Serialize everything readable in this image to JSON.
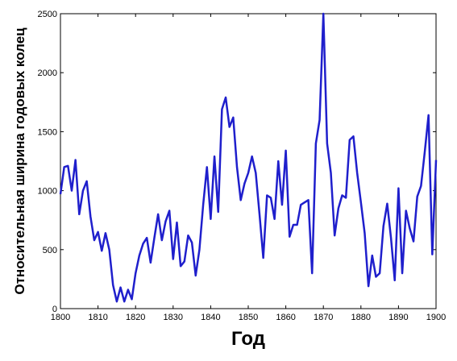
{
  "chart_data": {
    "type": "line",
    "xlabel": "Год",
    "ylabel": "Относительная ширина годовых колец",
    "x": [
      1800,
      1801,
      1802,
      1803,
      1804,
      1805,
      1806,
      1807,
      1808,
      1809,
      1810,
      1811,
      1812,
      1813,
      1814,
      1815,
      1816,
      1817,
      1818,
      1819,
      1820,
      1821,
      1822,
      1823,
      1824,
      1825,
      1826,
      1827,
      1828,
      1829,
      1830,
      1831,
      1832,
      1833,
      1834,
      1835,
      1836,
      1837,
      1838,
      1839,
      1840,
      1841,
      1842,
      1843,
      1844,
      1845,
      1846,
      1847,
      1848,
      1849,
      1850,
      1851,
      1852,
      1853,
      1854,
      1855,
      1856,
      1857,
      1858,
      1859,
      1860,
      1861,
      1862,
      1863,
      1864,
      1865,
      1866,
      1867,
      1868,
      1869,
      1870,
      1871,
      1872,
      1873,
      1874,
      1875,
      1876,
      1877,
      1878,
      1879,
      1880,
      1881,
      1882,
      1883,
      1884,
      1885,
      1886,
      1887,
      1888,
      1889,
      1890,
      1891,
      1892,
      1893,
      1894,
      1895,
      1896,
      1897,
      1898,
      1899,
      1900
    ],
    "series": [
      {
        "color": "#1f1fcc",
        "values": [
          970,
          1200,
          1210,
          1000,
          1260,
          800,
          1000,
          1080,
          780,
          580,
          650,
          490,
          640,
          500,
          200,
          60,
          180,
          60,
          160,
          80,
          300,
          450,
          550,
          600,
          390,
          600,
          800,
          580,
          740,
          830,
          420,
          730,
          360,
          400,
          620,
          560,
          280,
          500,
          880,
          1200,
          760,
          1290,
          820,
          1690,
          1790,
          1540,
          1620,
          1200,
          920,
          1060,
          1150,
          1290,
          1150,
          800,
          430,
          960,
          940,
          760,
          1250,
          880,
          1340,
          610,
          710,
          710,
          880,
          900,
          920,
          300,
          1400,
          1600,
          2500,
          1400,
          1150,
          620,
          850,
          960,
          940,
          1430,
          1460,
          1150,
          900,
          640,
          190,
          450,
          270,
          300,
          700,
          890,
          600,
          240,
          1020,
          300,
          830,
          680,
          570,
          950,
          1040,
          1330,
          1640,
          460,
          1260
        ]
      }
    ],
    "xlim": [
      1800,
      1900
    ],
    "xticks": [
      1800,
      1810,
      1820,
      1830,
      1840,
      1850,
      1860,
      1870,
      1880,
      1890,
      1900
    ],
    "ylim": [
      0,
      2500
    ],
    "yticks": [
      0,
      500,
      1000,
      1500,
      2000,
      2500
    ]
  }
}
